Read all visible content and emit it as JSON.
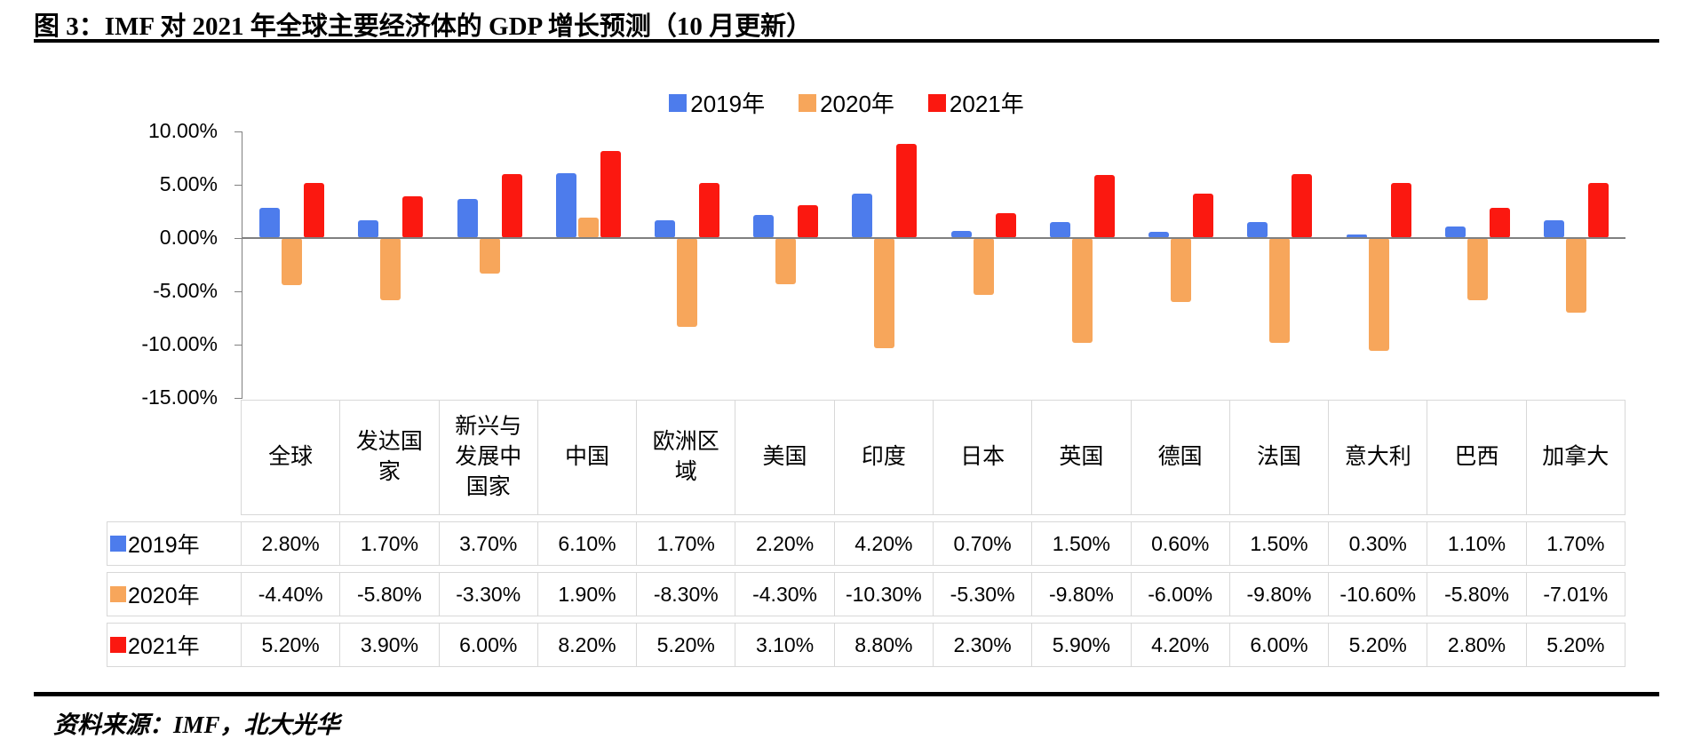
{
  "title": "图 3：IMF 对 2021 年全球主要经济体的 GDP 增长预测（10 月更新）",
  "source": "资料来源：IMF，北大光华",
  "colors": {
    "series_2019": "#4d7cec",
    "series_2020": "#f7a65b",
    "series_2021": "#fb1810",
    "zero_line": "#808080",
    "table_border": "#d8d8d8"
  },
  "chart_data": {
    "type": "bar",
    "title": "",
    "xlabel": "",
    "ylabel": "",
    "categories": [
      "全球",
      "发达国家",
      "新兴与发展中国家",
      "中国",
      "欧洲区域",
      "美国",
      "印度",
      "日本",
      "英国",
      "德国",
      "法国",
      "意大利",
      "巴西",
      "加拿大"
    ],
    "series": [
      {
        "name": "2019年",
        "color": "#4d7cec",
        "values": [
          2.8,
          1.7,
          3.7,
          6.1,
          1.7,
          2.2,
          4.2,
          0.7,
          1.5,
          0.6,
          1.5,
          0.3,
          1.1,
          1.7
        ]
      },
      {
        "name": "2020年",
        "color": "#f7a65b",
        "values": [
          -4.4,
          -5.8,
          -3.3,
          1.9,
          -8.3,
          -4.3,
          -10.3,
          -5.3,
          -9.8,
          -6.0,
          -9.8,
          -10.6,
          -5.8,
          -7.01
        ]
      },
      {
        "name": "2021年",
        "color": "#fb1810",
        "values": [
          5.2,
          3.9,
          6.0,
          8.2,
          5.2,
          3.1,
          8.8,
          2.3,
          5.9,
          4.2,
          6.0,
          5.2,
          2.8,
          5.2
        ]
      }
    ],
    "ylim": [
      -15,
      10
    ],
    "yticks": [
      "10.00%",
      "5.00%",
      "0.00%",
      "-5.00%",
      "-10.00%",
      "-15.00%"
    ],
    "ytick_values": [
      10,
      5,
      0,
      -5,
      -10,
      -15
    ],
    "legend_position": "top-center",
    "grid": false
  },
  "table": {
    "rows": [
      {
        "label": "2019年",
        "color": "#4d7cec",
        "values": [
          "2.80%",
          "1.70%",
          "3.70%",
          "6.10%",
          "1.70%",
          "2.20%",
          "4.20%",
          "0.70%",
          "1.50%",
          "0.60%",
          "1.50%",
          "0.30%",
          "1.10%",
          "1.70%"
        ]
      },
      {
        "label": "2020年",
        "color": "#f7a65b",
        "values": [
          "-4.40%",
          "-5.80%",
          "-3.30%",
          "1.90%",
          "-8.30%",
          "-4.30%",
          "-10.30%",
          "-5.30%",
          "-9.80%",
          "-6.00%",
          "-9.80%",
          "-10.60%",
          "-5.80%",
          "-7.01%"
        ]
      },
      {
        "label": "2021年",
        "color": "#fb1810",
        "values": [
          "5.20%",
          "3.90%",
          "6.00%",
          "8.20%",
          "5.20%",
          "3.10%",
          "8.80%",
          "2.30%",
          "5.90%",
          "4.20%",
          "6.00%",
          "5.20%",
          "2.80%",
          "5.20%"
        ]
      }
    ]
  }
}
